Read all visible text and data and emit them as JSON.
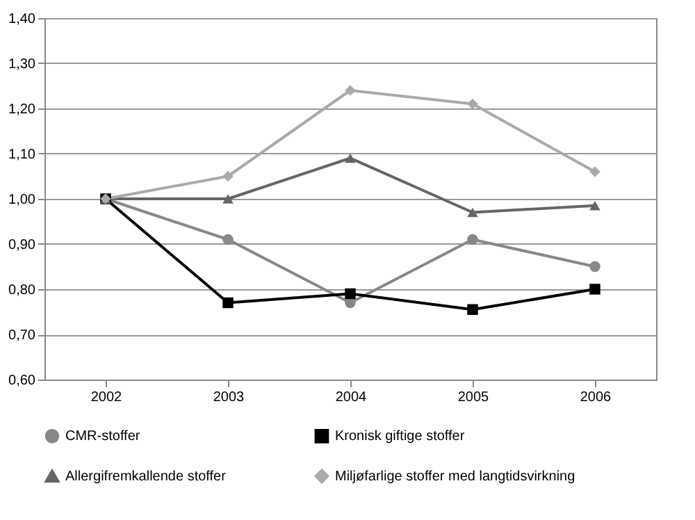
{
  "chart_data": {
    "type": "line",
    "categories": [
      "2002",
      "2003",
      "2004",
      "2005",
      "2006"
    ],
    "series": [
      {
        "name": "CMR-stoffer",
        "color": "#888888",
        "marker": "circle",
        "values": [
          1.0,
          0.91,
          0.77,
          0.91,
          0.85
        ]
      },
      {
        "name": "Kronisk giftige stoffer",
        "color": "#000000",
        "marker": "square",
        "values": [
          1.0,
          0.77,
          0.79,
          0.755,
          0.8
        ]
      },
      {
        "name": "Allergifremkallende stoffer",
        "color": "#666666",
        "marker": "triangle",
        "values": [
          1.0,
          1.0,
          1.09,
          0.97,
          0.985
        ]
      },
      {
        "name": "Miljøfarlige stoffer med langtidsvirkning",
        "color": "#aaaaaa",
        "marker": "diamond",
        "values": [
          1.0,
          1.05,
          1.24,
          1.21,
          1.06
        ]
      }
    ],
    "ylim": [
      0.6,
      1.4
    ],
    "yticks": [
      {
        "value": 0.6,
        "label": "0,60"
      },
      {
        "value": 0.7,
        "label": "0,70"
      },
      {
        "value": 0.8,
        "label": "0,80"
      },
      {
        "value": 0.9,
        "label": "0,90"
      },
      {
        "value": 1.0,
        "label": "1,00"
      },
      {
        "value": 1.1,
        "label": "1,10"
      },
      {
        "value": 1.2,
        "label": "1,20"
      },
      {
        "value": 1.3,
        "label": "1,30"
      },
      {
        "value": 1.4,
        "label": "1,40"
      }
    ],
    "grid": "y",
    "legend": "bottom",
    "line_style": "solid"
  }
}
